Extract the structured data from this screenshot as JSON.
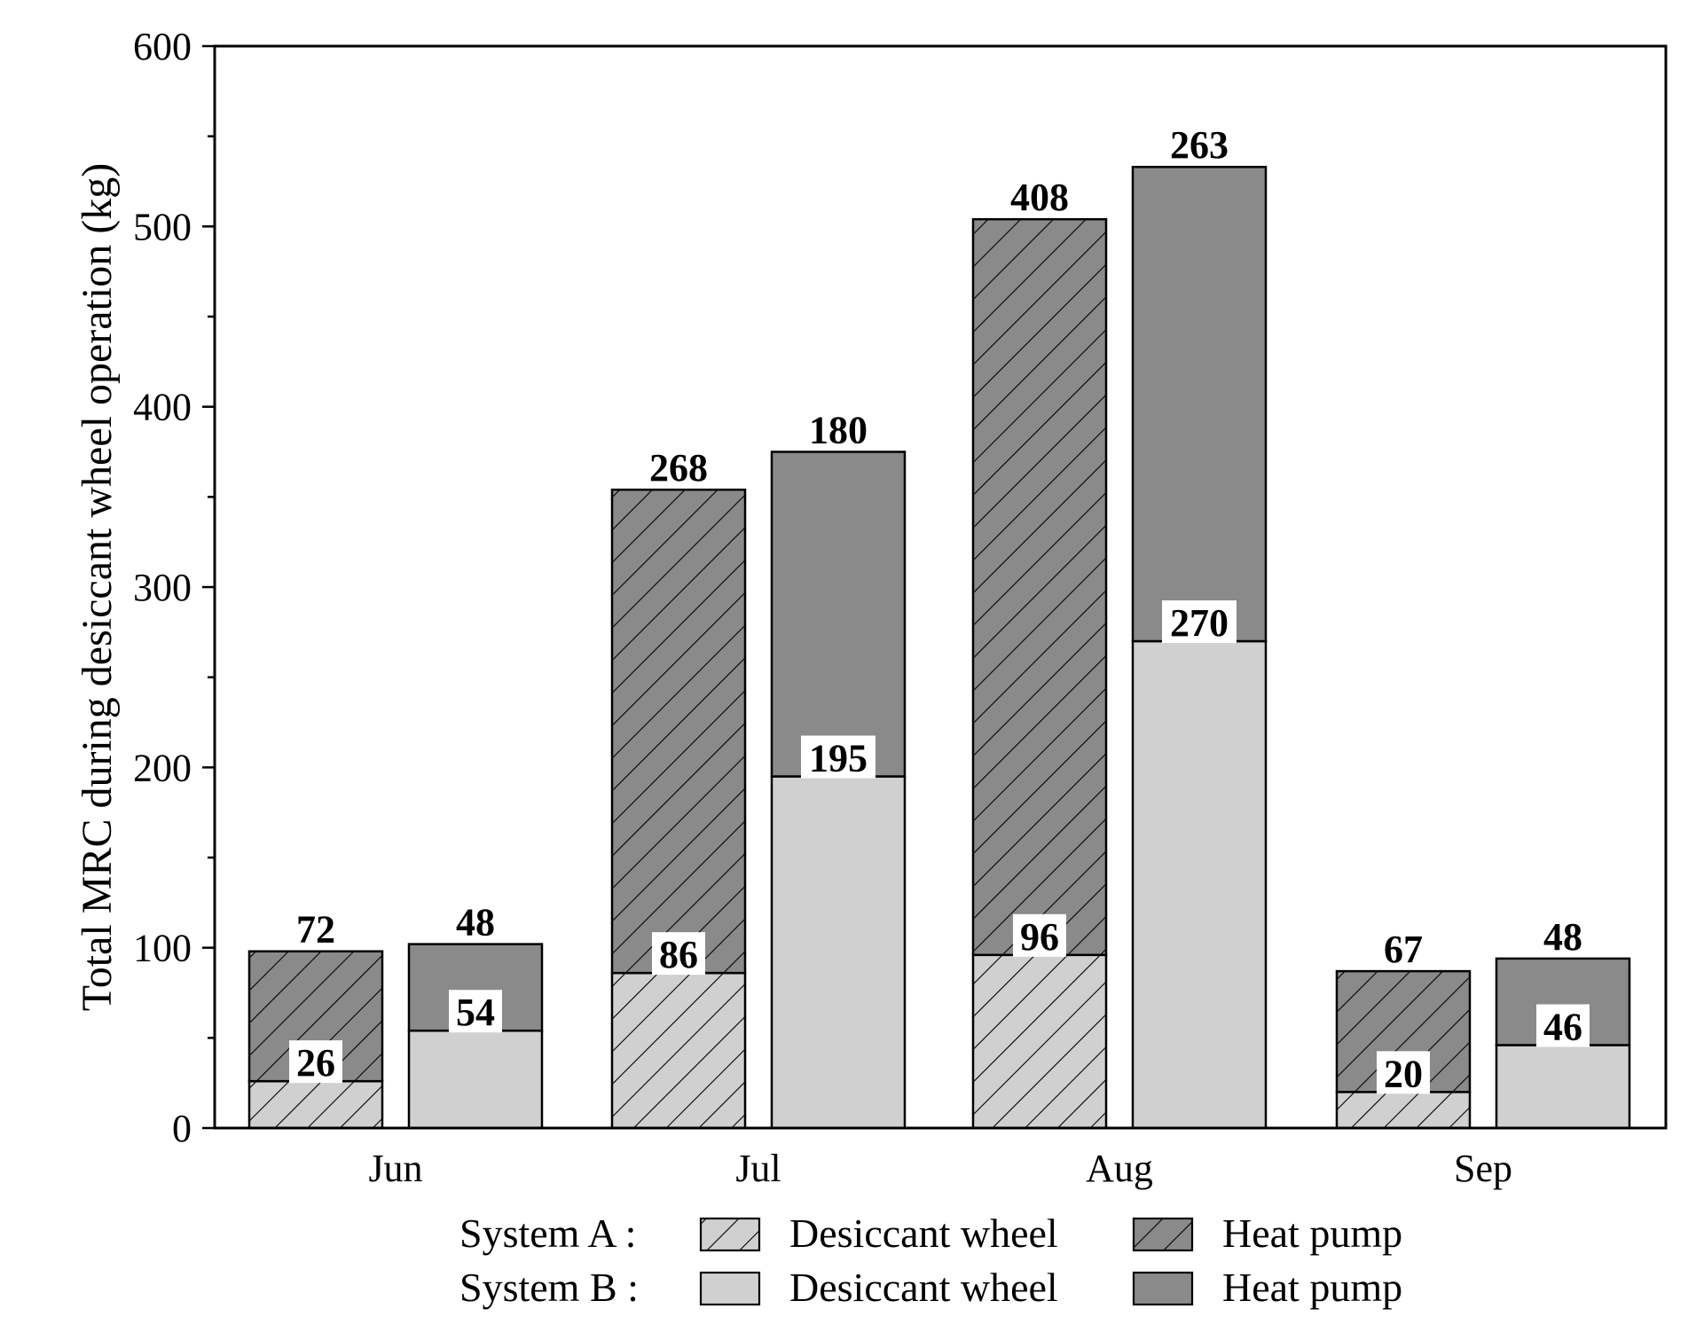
{
  "chart_data": {
    "type": "bar",
    "stacked": true,
    "grouped": true,
    "ylabel": "Total MRC during desiccant wheel operation (kg)",
    "xlabel": "",
    "ylim": [
      0,
      600
    ],
    "y_ticks": [
      "0",
      "100",
      "200",
      "300",
      "400",
      "500",
      "600"
    ],
    "categories": [
      "Jun",
      "Jul",
      "Aug",
      "Sep"
    ],
    "systems": [
      {
        "name": "System A :",
        "series": [
          {
            "name": "Desiccant wheel",
            "values": [
              26,
              86,
              96,
              20
            ],
            "labels": [
              "26",
              "86",
              "96",
              "20"
            ],
            "fill": "#d0d0d0",
            "hatch": true
          },
          {
            "name": "Heat pump",
            "values": [
              72,
              268,
              408,
              67
            ],
            "labels": [
              "72",
              "268",
              "408",
              "67"
            ],
            "fill": "#8a8a8a",
            "hatch": true
          }
        ]
      },
      {
        "name": "System B :",
        "series": [
          {
            "name": "Desiccant wheel",
            "values": [
              54,
              195,
              270,
              46
            ],
            "labels": [
              "54",
              "195",
              "270",
              "46"
            ],
            "fill": "#d0d0d0",
            "hatch": false
          },
          {
            "name": "Heat pump",
            "values": [
              48,
              180,
              263,
              48
            ],
            "labels": [
              "48",
              "180",
              "263",
              "48"
            ],
            "fill": "#8a8a8a",
            "hatch": false
          }
        ]
      }
    ],
    "colors": {
      "light": "#d0d0d0",
      "dark": "#8a8a8a",
      "axis": "#000000"
    }
  }
}
